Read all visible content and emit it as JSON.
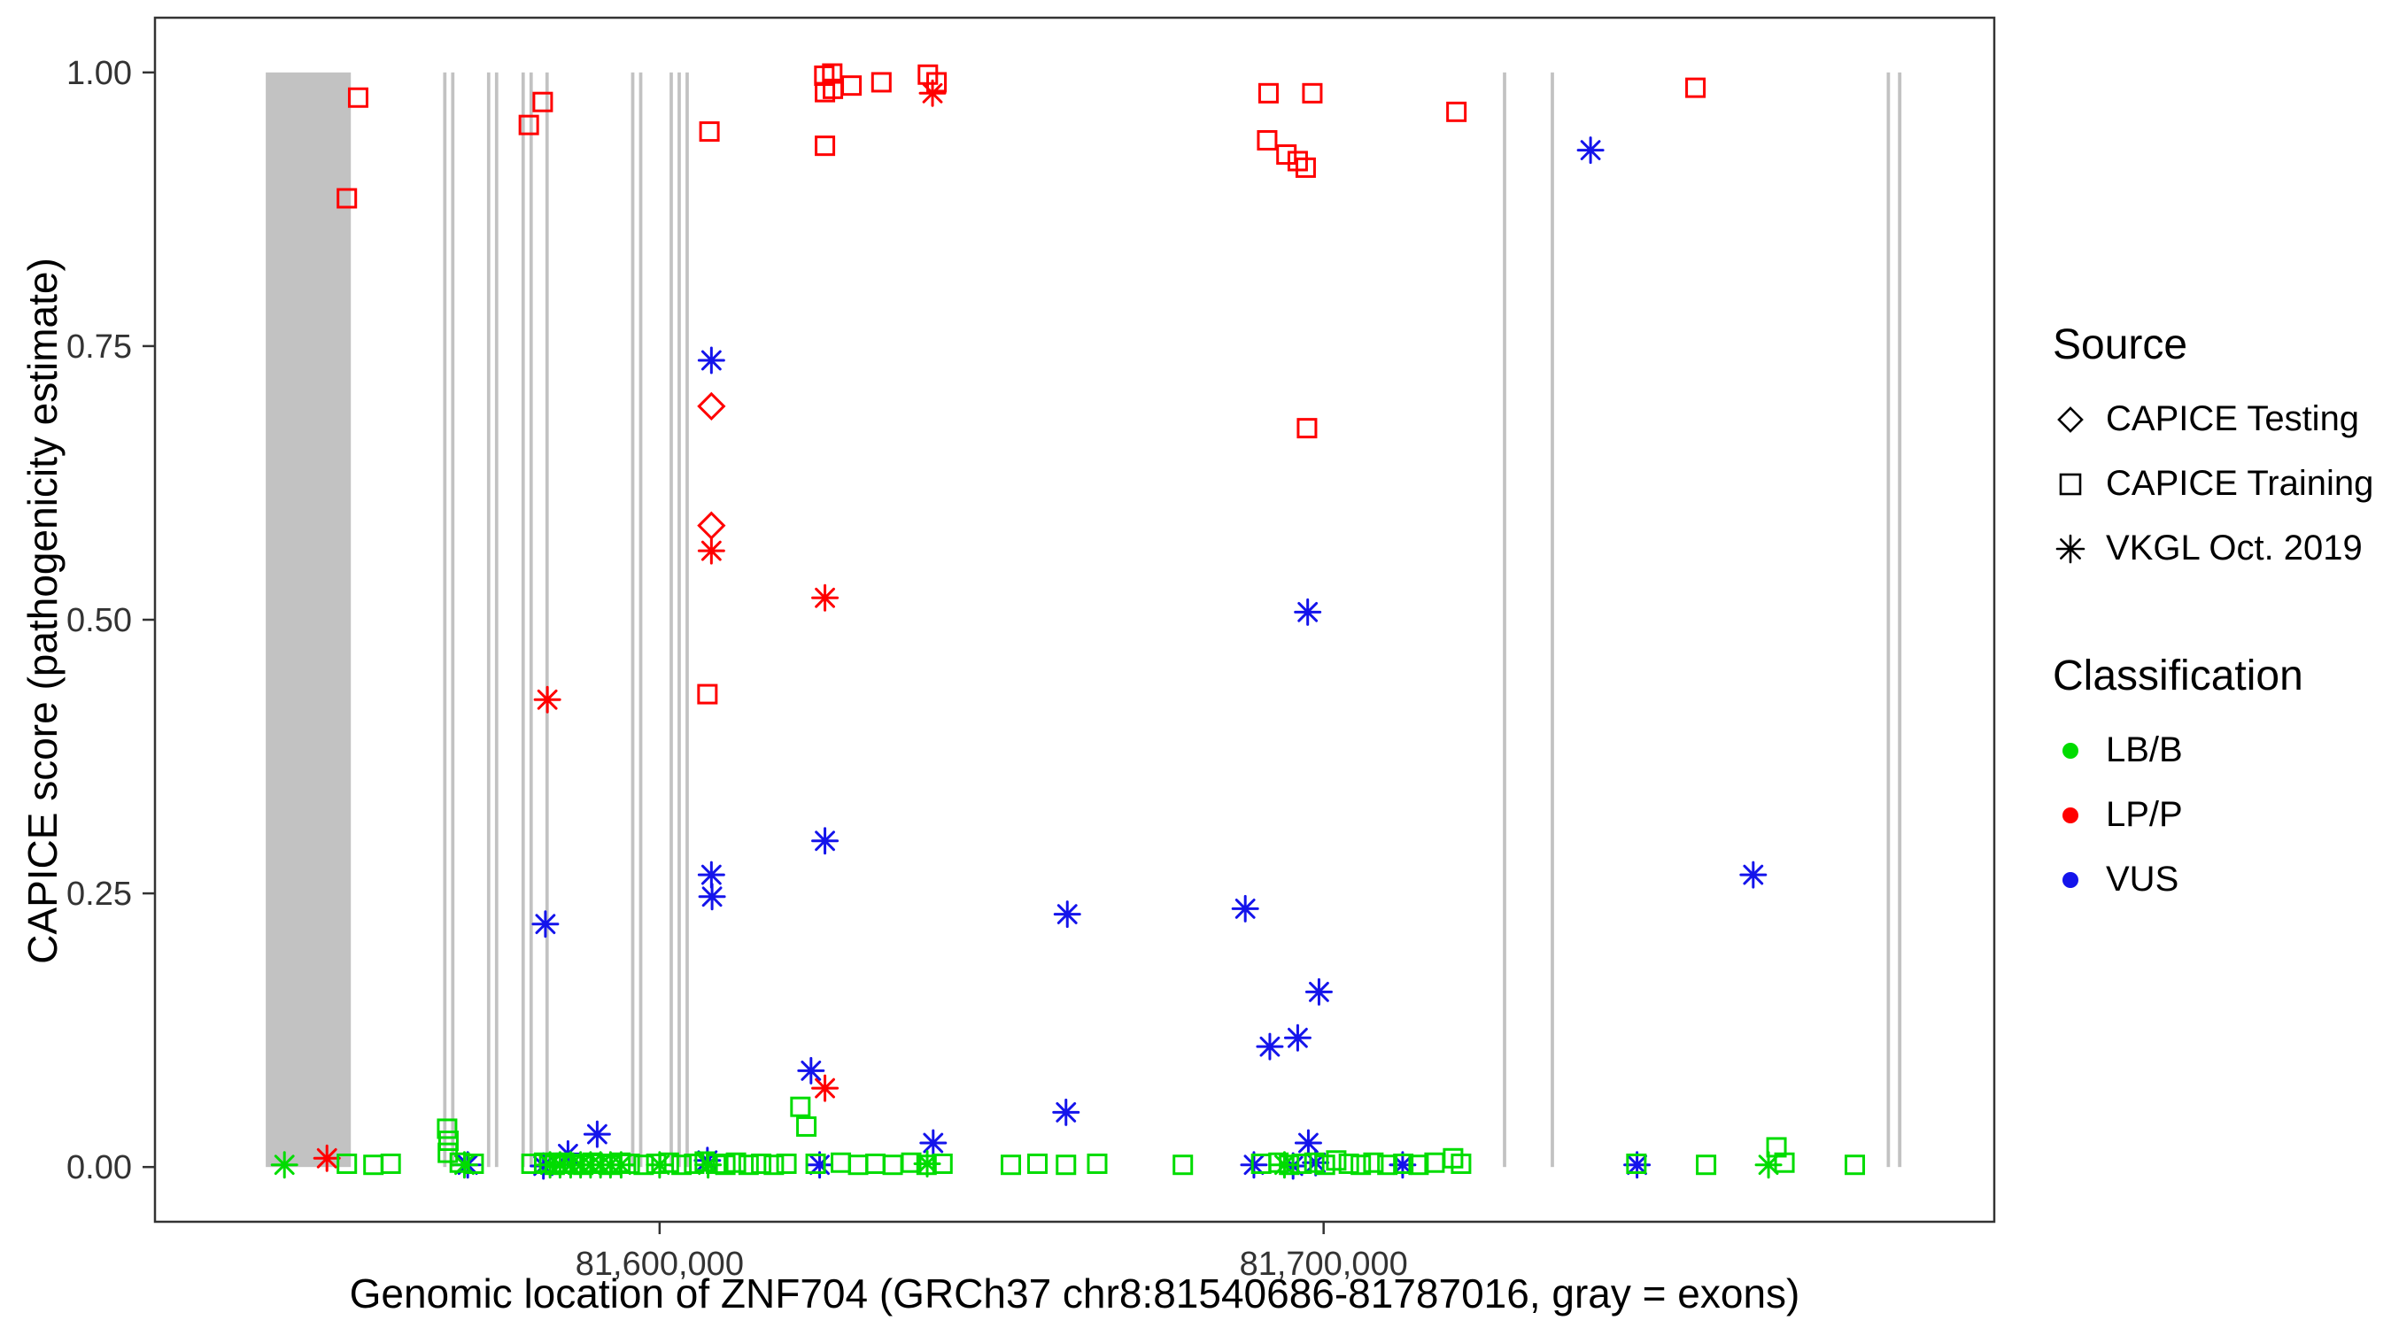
{
  "chart_data": {
    "type": "scatter",
    "title": "",
    "xlabel": "Genomic location of ZNF704 (GRCh37 chr8:81540686-81787016, gray = exons)",
    "ylabel": "CAPICE score (pathogenicity estimate)",
    "x_domain": [
      81524000,
      81801000
    ],
    "y_domain": [
      -0.05,
      1.05
    ],
    "x_ticks": [
      {
        "value": 81600000,
        "label": "81,600,000"
      },
      {
        "value": 81700000,
        "label": "81,700,000"
      }
    ],
    "y_ticks": [
      {
        "value": 0.0,
        "label": "0.00"
      },
      {
        "value": 0.25,
        "label": "0.25"
      },
      {
        "value": 0.5,
        "label": "0.50"
      },
      {
        "value": 0.75,
        "label": "0.75"
      },
      {
        "value": 1.0,
        "label": "1.00"
      }
    ],
    "grid": false,
    "legend_position": "right",
    "exon_color": "#C2C2C2",
    "exons": [
      [
        81540686,
        81553500
      ],
      [
        81567400,
        81567900
      ],
      [
        81568600,
        81569100
      ],
      [
        81574000,
        81574500
      ],
      [
        81575200,
        81575700
      ],
      [
        81579200,
        81579700
      ],
      [
        81580400,
        81580900
      ],
      [
        81582800,
        81583300
      ],
      [
        81595700,
        81596200
      ],
      [
        81596900,
        81597400
      ],
      [
        81601500,
        81602000
      ],
      [
        81602700,
        81603200
      ],
      [
        81603900,
        81604400
      ],
      [
        81727000,
        81727500
      ],
      [
        81734200,
        81734700
      ],
      [
        81784800,
        81785300
      ],
      [
        81786500,
        81787016
      ]
    ],
    "colors": {
      "LB/B": "#00DC00",
      "LP/P": "#FF0000",
      "VUS": "#1414EB"
    },
    "shapes": {
      "CAPICE Testing": "diamond",
      "CAPICE Training": "square",
      "VKGL Oct. 2019": "asterisk"
    },
    "points": [
      [
        81554600,
        0.977,
        "square",
        "LP/P"
      ],
      [
        81552900,
        0.885,
        "square",
        "LP/P"
      ],
      [
        81582400,
        0.973,
        "square",
        "LP/P"
      ],
      [
        81580300,
        0.952,
        "square",
        "LP/P"
      ],
      [
        81607500,
        0.946,
        "square",
        "LP/P"
      ],
      [
        81607200,
        0.432,
        "square",
        "LP/P"
      ],
      [
        81624900,
        0.933,
        "square",
        "LP/P"
      ],
      [
        81624800,
        0.997,
        "square",
        "LP/P"
      ],
      [
        81626000,
        0.999,
        "square",
        "LP/P"
      ],
      [
        81626100,
        0.985,
        "square",
        "LP/P"
      ],
      [
        81624900,
        0.982,
        "square",
        "LP/P"
      ],
      [
        81628900,
        0.988,
        "square",
        "LP/P"
      ],
      [
        81633400,
        0.991,
        "square",
        "LP/P"
      ],
      [
        81640400,
        0.998,
        "square",
        "LP/P"
      ],
      [
        81641700,
        0.991,
        "square",
        "LP/P"
      ],
      [
        81691700,
        0.981,
        "square",
        "LP/P"
      ],
      [
        81698300,
        0.981,
        "square",
        "LP/P"
      ],
      [
        81691500,
        0.938,
        "square",
        "LP/P"
      ],
      [
        81694400,
        0.925,
        "square",
        "LP/P"
      ],
      [
        81696100,
        0.919,
        "square",
        "LP/P"
      ],
      [
        81697300,
        0.913,
        "square",
        "LP/P"
      ],
      [
        81697500,
        0.675,
        "square",
        "LP/P"
      ],
      [
        81720000,
        0.964,
        "square",
        "LP/P"
      ],
      [
        81756000,
        0.986,
        "square",
        "LP/P"
      ],
      [
        81607800,
        0.695,
        "diamond",
        "LP/P"
      ],
      [
        81607800,
        0.586,
        "diamond",
        "LP/P"
      ],
      [
        81641100,
        0.981,
        "asterisk",
        "LP/P"
      ],
      [
        81607800,
        0.563,
        "asterisk",
        "LP/P"
      ],
      [
        81624900,
        0.52,
        "asterisk",
        "LP/P"
      ],
      [
        81583100,
        0.427,
        "asterisk",
        "LP/P"
      ],
      [
        81624900,
        0.072,
        "asterisk",
        "LP/P"
      ],
      [
        81549900,
        0.008,
        "asterisk",
        "LP/P"
      ],
      [
        81607800,
        0.737,
        "asterisk",
        "VUS"
      ],
      [
        81740200,
        0.929,
        "asterisk",
        "VUS"
      ],
      [
        81697600,
        0.507,
        "asterisk",
        "VUS"
      ],
      [
        81624900,
        0.298,
        "asterisk",
        "VUS"
      ],
      [
        81607800,
        0.267,
        "asterisk",
        "VUS"
      ],
      [
        81607900,
        0.247,
        "asterisk",
        "VUS"
      ],
      [
        81582800,
        0.222,
        "asterisk",
        "VUS"
      ],
      [
        81661400,
        0.231,
        "asterisk",
        "VUS"
      ],
      [
        81688200,
        0.236,
        "asterisk",
        "VUS"
      ],
      [
        81699300,
        0.16,
        "asterisk",
        "VUS"
      ],
      [
        81696100,
        0.118,
        "asterisk",
        "VUS"
      ],
      [
        81691900,
        0.11,
        "asterisk",
        "VUS"
      ],
      [
        81661200,
        0.05,
        "asterisk",
        "VUS"
      ],
      [
        81622800,
        0.088,
        "asterisk",
        "VUS"
      ],
      [
        81641200,
        0.022,
        "asterisk",
        "VUS"
      ],
      [
        81764700,
        0.267,
        "asterisk",
        "VUS"
      ],
      [
        81590600,
        0.03,
        "asterisk",
        "VUS"
      ],
      [
        81586200,
        0.012,
        "asterisk",
        "VUS"
      ],
      [
        81697700,
        0.022,
        "asterisk",
        "VUS"
      ],
      [
        81698800,
        0.004,
        "asterisk",
        "VUS"
      ],
      [
        81571100,
        0.002,
        "asterisk",
        "VUS"
      ],
      [
        81582500,
        0.001,
        "asterisk",
        "VUS"
      ],
      [
        81607200,
        0.006,
        "asterisk",
        "VUS"
      ],
      [
        81624100,
        0.002,
        "asterisk",
        "VUS"
      ],
      [
        81689500,
        0.002,
        "asterisk",
        "VUS"
      ],
      [
        81695400,
        0.001,
        "asterisk",
        "VUS"
      ],
      [
        81711900,
        0.002,
        "asterisk",
        "VUS"
      ],
      [
        81747200,
        0.002,
        "asterisk",
        "VUS"
      ],
      [
        81552900,
        0.003,
        "square",
        "LB/B"
      ],
      [
        81556900,
        0.002,
        "square",
        "LB/B"
      ],
      [
        81559500,
        0.003,
        "square",
        "LB/B"
      ],
      [
        81568000,
        0.035,
        "square",
        "LB/B"
      ],
      [
        81568200,
        0.024,
        "square",
        "LB/B"
      ],
      [
        81568100,
        0.013,
        "square",
        "LB/B"
      ],
      [
        81569900,
        0.004,
        "square",
        "LB/B"
      ],
      [
        81572000,
        0.003,
        "square",
        "LB/B"
      ],
      [
        81580700,
        0.003,
        "square",
        "LB/B"
      ],
      [
        81582600,
        0.004,
        "square",
        "LB/B"
      ],
      [
        81584200,
        0.002,
        "square",
        "LB/B"
      ],
      [
        81585600,
        0.004,
        "square",
        "LB/B"
      ],
      [
        81587100,
        0.003,
        "square",
        "LB/B"
      ],
      [
        81588500,
        0.002,
        "square",
        "LB/B"
      ],
      [
        81589900,
        0.004,
        "square",
        "LB/B"
      ],
      [
        81591300,
        0.003,
        "square",
        "LB/B"
      ],
      [
        81592700,
        0.002,
        "square",
        "LB/B"
      ],
      [
        81594100,
        0.004,
        "square",
        "LB/B"
      ],
      [
        81595500,
        0.003,
        "square",
        "LB/B"
      ],
      [
        81597600,
        0.002,
        "square",
        "LB/B"
      ],
      [
        81599500,
        0.003,
        "square",
        "LB/B"
      ],
      [
        81601400,
        0.004,
        "square",
        "LB/B"
      ],
      [
        81603300,
        0.002,
        "square",
        "LB/B"
      ],
      [
        81605200,
        0.003,
        "square",
        "LB/B"
      ],
      [
        81606800,
        0.005,
        "square",
        "LB/B"
      ],
      [
        81608500,
        0.003,
        "square",
        "LB/B"
      ],
      [
        81609900,
        0.002,
        "square",
        "LB/B"
      ],
      [
        81611500,
        0.004,
        "square",
        "LB/B"
      ],
      [
        81613400,
        0.002,
        "square",
        "LB/B"
      ],
      [
        81615300,
        0.003,
        "square",
        "LB/B"
      ],
      [
        81617200,
        0.002,
        "square",
        "LB/B"
      ],
      [
        81619100,
        0.003,
        "square",
        "LB/B"
      ],
      [
        81621200,
        0.055,
        "square",
        "LB/B"
      ],
      [
        81622100,
        0.037,
        "square",
        "LB/B"
      ],
      [
        81623500,
        0.003,
        "square",
        "LB/B"
      ],
      [
        81627300,
        0.004,
        "square",
        "LB/B"
      ],
      [
        81629900,
        0.002,
        "square",
        "LB/B"
      ],
      [
        81632500,
        0.003,
        "square",
        "LB/B"
      ],
      [
        81635100,
        0.002,
        "square",
        "LB/B"
      ],
      [
        81637900,
        0.004,
        "square",
        "LB/B"
      ],
      [
        81640200,
        0.002,
        "square",
        "LB/B"
      ],
      [
        81642600,
        0.003,
        "square",
        "LB/B"
      ],
      [
        81652900,
        0.002,
        "square",
        "LB/B"
      ],
      [
        81656900,
        0.003,
        "square",
        "LB/B"
      ],
      [
        81661200,
        0.002,
        "square",
        "LB/B"
      ],
      [
        81665900,
        0.003,
        "square",
        "LB/B"
      ],
      [
        81678800,
        0.002,
        "square",
        "LB/B"
      ],
      [
        81690600,
        0.003,
        "square",
        "LB/B"
      ],
      [
        81693200,
        0.004,
        "square",
        "LB/B"
      ],
      [
        81694800,
        0.002,
        "square",
        "LB/B"
      ],
      [
        81696700,
        0.003,
        "square",
        "LB/B"
      ],
      [
        81698600,
        0.004,
        "square",
        "LB/B"
      ],
      [
        81700200,
        0.002,
        "square",
        "LB/B"
      ],
      [
        81701900,
        0.006,
        "square",
        "LB/B"
      ],
      [
        81703800,
        0.003,
        "square",
        "LB/B"
      ],
      [
        81705600,
        0.002,
        "square",
        "LB/B"
      ],
      [
        81707500,
        0.004,
        "square",
        "LB/B"
      ],
      [
        81709600,
        0.002,
        "square",
        "LB/B"
      ],
      [
        81712000,
        0.003,
        "square",
        "LB/B"
      ],
      [
        81714300,
        0.002,
        "square",
        "LB/B"
      ],
      [
        81716700,
        0.004,
        "square",
        "LB/B"
      ],
      [
        81719500,
        0.008,
        "square",
        "LB/B"
      ],
      [
        81720700,
        0.003,
        "square",
        "LB/B"
      ],
      [
        81747100,
        0.003,
        "square",
        "LB/B"
      ],
      [
        81757600,
        0.002,
        "square",
        "LB/B"
      ],
      [
        81768200,
        0.018,
        "square",
        "LB/B"
      ],
      [
        81769400,
        0.004,
        "square",
        "LB/B"
      ],
      [
        81780000,
        0.002,
        "square",
        "LB/B"
      ],
      [
        81543500,
        0.002,
        "asterisk",
        "LB/B"
      ],
      [
        81570600,
        0.002,
        "asterisk",
        "LB/B"
      ],
      [
        81583500,
        0.002,
        "asterisk",
        "LB/B"
      ],
      [
        81585000,
        0.002,
        "asterisk",
        "LB/B"
      ],
      [
        81586600,
        0.002,
        "asterisk",
        "LB/B"
      ],
      [
        81588100,
        0.002,
        "asterisk",
        "LB/B"
      ],
      [
        81589600,
        0.002,
        "asterisk",
        "LB/B"
      ],
      [
        81591100,
        0.002,
        "asterisk",
        "LB/B"
      ],
      [
        81592600,
        0.002,
        "asterisk",
        "LB/B"
      ],
      [
        81594200,
        0.002,
        "asterisk",
        "LB/B"
      ],
      [
        81600000,
        0.002,
        "asterisk",
        "LB/B"
      ],
      [
        81607300,
        0.002,
        "asterisk",
        "LB/B"
      ],
      [
        81640300,
        0.003,
        "asterisk",
        "LB/B"
      ],
      [
        81694100,
        0.002,
        "asterisk",
        "LB/B"
      ],
      [
        81767000,
        0.002,
        "asterisk",
        "LB/B"
      ]
    ]
  },
  "legend": {
    "source": {
      "title": "Source",
      "items": [
        {
          "label": "CAPICE Testing",
          "icon": "diamond-icon"
        },
        {
          "label": "CAPICE Training",
          "icon": "square-icon"
        },
        {
          "label": "VKGL Oct. 2019",
          "icon": "asterisk-icon"
        }
      ]
    },
    "classification": {
      "title": "Classification",
      "items": [
        {
          "label": "LB/B",
          "color": "#00DC00"
        },
        {
          "label": "LP/P",
          "color": "#FF0000"
        },
        {
          "label": "VUS",
          "color": "#1414EB"
        }
      ]
    }
  }
}
